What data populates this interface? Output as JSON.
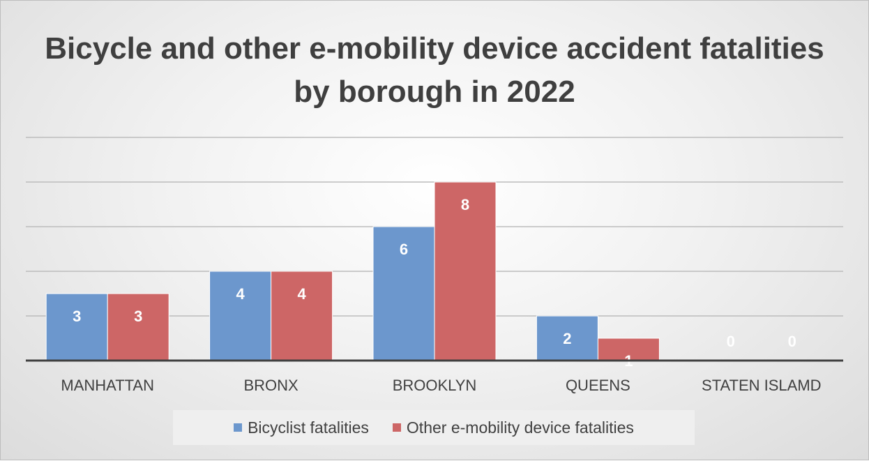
{
  "chart_data": {
    "type": "bar",
    "title": "Bicycle and other e-mobility device accident fatalities by borough in 2022",
    "categories": [
      "MANHATTAN",
      "BRONX",
      "BROOKLYN",
      "QUEENS",
      "STATEN ISLAMD"
    ],
    "series": [
      {
        "name": "Bicyclist fatalities",
        "values": [
          3,
          4,
          6,
          2,
          0
        ],
        "color": "#6c97cd"
      },
      {
        "name": "Other e-mobility device fatalities",
        "values": [
          3,
          4,
          8,
          1,
          0
        ],
        "color": "#cd6666"
      }
    ],
    "xlabel": "",
    "ylabel": "",
    "ylim": [
      0,
      10
    ],
    "grid": true,
    "legend_position": "bottom",
    "data_labels": true
  }
}
